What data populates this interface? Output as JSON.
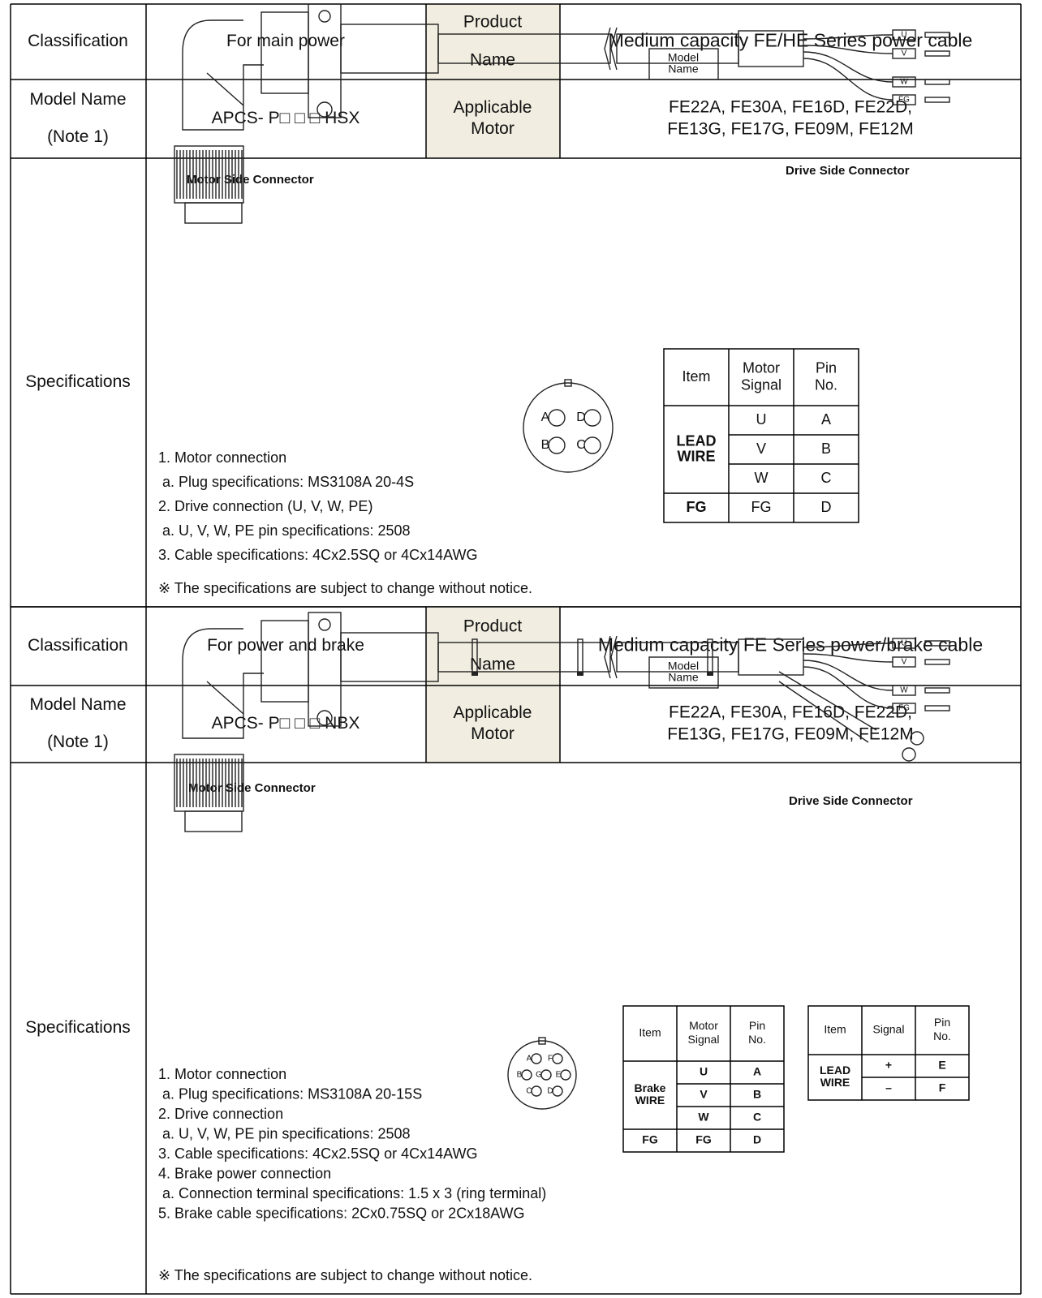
{
  "sections": [
    {
      "classification_label": "Classification",
      "classification": "For main power",
      "product_name_label": [
        "Product",
        "Name"
      ],
      "product_name": "Medium capacity FE/HE Series power cable",
      "model_name_label": [
        "Model Name",
        "(Note 1)"
      ],
      "model_name": "APCS- P□ □ □ HSX",
      "applicable_motor_label": [
        "Applicable",
        "Motor"
      ],
      "applicable_motor": [
        "FE22A, FE30A, FE16D, FE22D,",
        "FE13G, FE17G, FE09M, FE12M"
      ],
      "specifications_label": "Specifications",
      "diagram": {
        "motor_side": "Motor Side Connector",
        "drive_side": "Drive Side Connector",
        "cable_label": [
          "Model",
          "Name"
        ],
        "wires": [
          "U",
          "V",
          "W",
          "FG"
        ],
        "pins": [
          "A",
          "D",
          "B",
          "C"
        ]
      },
      "pin_tables": [
        {
          "headers": [
            [
              "Item"
            ],
            [
              "Motor",
              "Signal"
            ],
            [
              "Pin",
              "No."
            ]
          ],
          "groups": [
            {
              "item": [
                "LEAD",
                "WIRE"
              ],
              "rows": [
                [
                  "U",
                  "A"
                ],
                [
                  "V",
                  "B"
                ],
                [
                  "W",
                  "C"
                ]
              ]
            },
            {
              "item": [
                "FG"
              ],
              "rows": [
                [
                  "FG",
                  "D"
                ]
              ]
            }
          ]
        }
      ],
      "notes": [
        "1. Motor connection",
        "a. Plug specifications: MS3108A 20-4S",
        "2. Drive connection (U, V, W, PE)",
        "a. U, V, W, PE pin specifications: 2508",
        "3. Cable specifications: 4Cx2.5SQ or 4Cx14AWG"
      ],
      "notice": "※ The specifications are subject to change without notice."
    },
    {
      "classification_label": "Classification",
      "classification": "For power and brake",
      "product_name_label": [
        "Product",
        "Name"
      ],
      "product_name": "Medium capacity FE Series power/brake cable",
      "model_name_label": [
        "Model Name",
        "(Note 1)"
      ],
      "model_name": "APCS- P□ □ □ NBX",
      "applicable_motor_label": [
        "Applicable",
        "Motor"
      ],
      "applicable_motor": [
        "FE22A, FE30A, FE16D, FE22D,",
        "FE13G, FE17G, FE09M, FE12M"
      ],
      "specifications_label": "Specifications",
      "diagram": {
        "motor_side": "Motor Side Connector",
        "drive_side": "Drive Side Connector",
        "cable_label": [
          "Model",
          "Name"
        ],
        "wires": [
          "U",
          "V",
          "W",
          "FG"
        ],
        "pins": [
          "A",
          "F",
          "B",
          "G",
          "E",
          "C",
          "D"
        ]
      },
      "pin_tables": [
        {
          "headers": [
            [
              "Item"
            ],
            [
              "Motor",
              "Signal"
            ],
            [
              "Pin",
              "No."
            ]
          ],
          "groups": [
            {
              "item": [
                "Brake",
                "WIRE"
              ],
              "rows": [
                [
                  "U",
                  "A"
                ],
                [
                  "V",
                  "B"
                ],
                [
                  "W",
                  "C"
                ]
              ]
            },
            {
              "item": [
                "FG"
              ],
              "rows": [
                [
                  "FG",
                  "D"
                ]
              ]
            }
          ]
        },
        {
          "headers": [
            [
              "Item"
            ],
            [
              "Signal"
            ],
            [
              "Pin",
              "No."
            ]
          ],
          "groups": [
            {
              "item": [
                "LEAD",
                "WIRE"
              ],
              "rows": [
                [
                  "+",
                  "E"
                ],
                [
                  "–",
                  "F"
                ]
              ]
            }
          ]
        }
      ],
      "notes": [
        "1. Motor connection",
        "a. Plug specifications: MS3108A 20-15S",
        "2. Drive connection",
        "a. U, V, W, PE pin specifications: 2508",
        "3. Cable specifications: 4Cx2.5SQ or 4Cx14AWG",
        "4. Brake power connection",
        "a. Connection terminal specifications: 1.5 x 3 (ring terminal)",
        "5. Brake cable specifications: 2Cx0.75SQ or 2Cx18AWG"
      ],
      "notice": "※ The specifications are subject to change without notice."
    }
  ]
}
